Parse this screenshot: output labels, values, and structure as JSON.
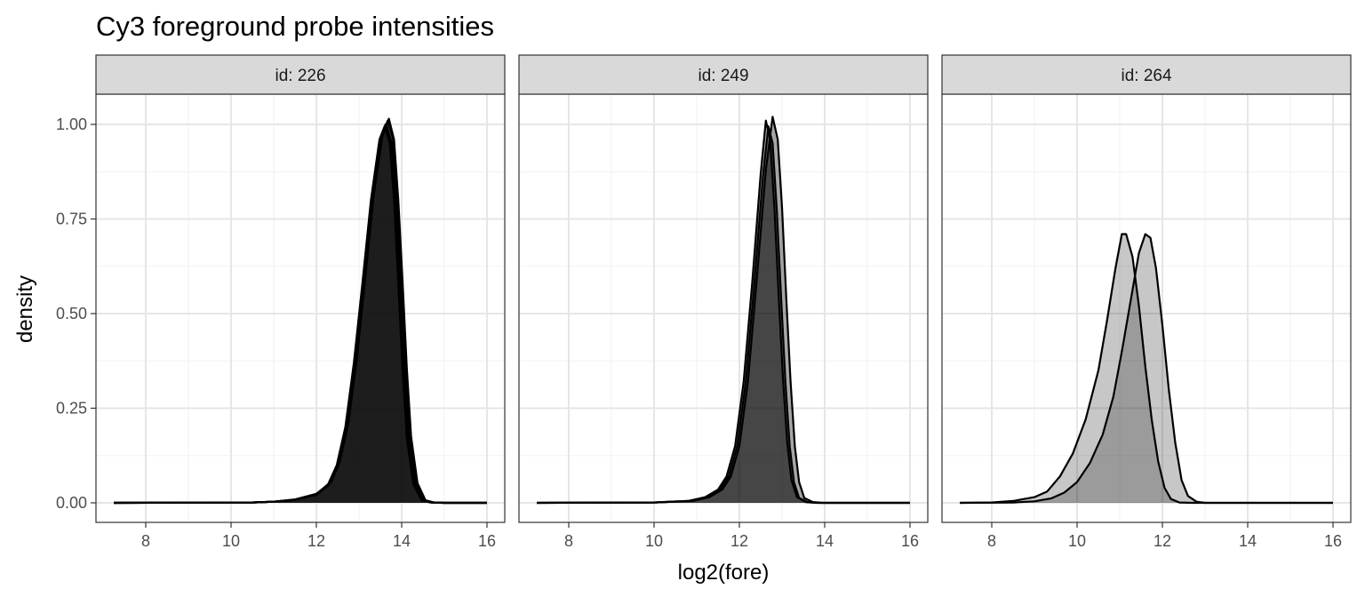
{
  "chart_data": {
    "type": "area",
    "title": "Cy3 foreground probe intensities",
    "xlabel": "log2(fore)",
    "ylabel": "density",
    "xlim": [
      7.2,
      16.0
    ],
    "ylim": [
      0,
      1.05
    ],
    "x_ticks": [
      8,
      10,
      12,
      14,
      16
    ],
    "y_ticks": [
      0,
      0.25,
      0.5,
      0.75,
      1.0
    ],
    "y_tick_labels": [
      "0.00",
      "0.25",
      "0.50",
      "0.75",
      "1.00"
    ],
    "grid": true,
    "legend": "none",
    "panels": [
      {
        "strip": "id: 226",
        "series": [
          {
            "fill": "#000000",
            "fill_opacity": 0.35,
            "points": [
              [
                7.25,
                0
              ],
              [
                10.5,
                0.001
              ],
              [
                11.0,
                0.003
              ],
              [
                11.5,
                0.008
              ],
              [
                12.0,
                0.022
              ],
              [
                12.3,
                0.05
              ],
              [
                12.5,
                0.1
              ],
              [
                12.7,
                0.2
              ],
              [
                12.9,
                0.37
              ],
              [
                13.1,
                0.58
              ],
              [
                13.3,
                0.8
              ],
              [
                13.5,
                0.96
              ],
              [
                13.62,
                1.0
              ],
              [
                13.75,
                0.95
              ],
              [
                13.85,
                0.8
              ],
              [
                13.95,
                0.58
              ],
              [
                14.05,
                0.35
              ],
              [
                14.15,
                0.17
              ],
              [
                14.3,
                0.05
              ],
              [
                14.5,
                0.006
              ],
              [
                14.7,
                0.001
              ],
              [
                15.0,
                0
              ],
              [
                16.0,
                0
              ]
            ]
          },
          {
            "fill": "#000000",
            "fill_opacity": 0.35,
            "points": [
              [
                7.25,
                0
              ],
              [
                10.5,
                0.001
              ],
              [
                11.0,
                0.003
              ],
              [
                11.5,
                0.009
              ],
              [
                12.0,
                0.024
              ],
              [
                12.35,
                0.055
              ],
              [
                12.55,
                0.11
              ],
              [
                12.75,
                0.21
              ],
              [
                12.95,
                0.38
              ],
              [
                13.15,
                0.6
              ],
              [
                13.35,
                0.82
              ],
              [
                13.55,
                0.97
              ],
              [
                13.67,
                1.01
              ],
              [
                13.8,
                0.96
              ],
              [
                13.9,
                0.81
              ],
              [
                14.0,
                0.59
              ],
              [
                14.1,
                0.36
              ],
              [
                14.2,
                0.18
              ],
              [
                14.35,
                0.055
              ],
              [
                14.55,
                0.007
              ],
              [
                14.75,
                0.001
              ],
              [
                15.0,
                0
              ],
              [
                16.0,
                0
              ]
            ]
          },
          {
            "fill": "#000000",
            "fill_opacity": 0.35,
            "points": [
              [
                7.25,
                0
              ],
              [
                10.5,
                0.001
              ],
              [
                11.0,
                0.003
              ],
              [
                11.5,
                0.008
              ],
              [
                12.0,
                0.021
              ],
              [
                12.3,
                0.048
              ],
              [
                12.52,
                0.1
              ],
              [
                12.72,
                0.2
              ],
              [
                12.92,
                0.37
              ],
              [
                13.12,
                0.59
              ],
              [
                13.32,
                0.81
              ],
              [
                13.52,
                0.97
              ],
              [
                13.64,
                1.0
              ],
              [
                13.77,
                0.95
              ],
              [
                13.88,
                0.8
              ],
              [
                13.98,
                0.58
              ],
              [
                14.08,
                0.35
              ],
              [
                14.18,
                0.17
              ],
              [
                14.33,
                0.05
              ],
              [
                14.52,
                0.006
              ],
              [
                14.72,
                0.001
              ],
              [
                15.0,
                0
              ],
              [
                16.0,
                0
              ]
            ]
          },
          {
            "fill": "#000000",
            "fill_opacity": 0.35,
            "points": [
              [
                7.25,
                0
              ],
              [
                10.5,
                0.001
              ],
              [
                11.0,
                0.003
              ],
              [
                11.5,
                0.009
              ],
              [
                12.0,
                0.023
              ],
              [
                12.32,
                0.052
              ],
              [
                12.54,
                0.105
              ],
              [
                12.74,
                0.205
              ],
              [
                12.94,
                0.375
              ],
              [
                13.14,
                0.59
              ],
              [
                13.34,
                0.81
              ],
              [
                13.54,
                0.965
              ],
              [
                13.7,
                1.015
              ],
              [
                13.82,
                0.96
              ],
              [
                13.92,
                0.8
              ],
              [
                14.02,
                0.585
              ],
              [
                14.12,
                0.355
              ],
              [
                14.22,
                0.175
              ],
              [
                14.37,
                0.052
              ],
              [
                14.56,
                0.006
              ],
              [
                14.76,
                0.001
              ],
              [
                15.0,
                0
              ],
              [
                16.0,
                0
              ]
            ]
          },
          {
            "fill": "#000000",
            "fill_opacity": 0.35,
            "points": [
              [
                7.25,
                0
              ],
              [
                10.5,
                0.001
              ],
              [
                11.0,
                0.003
              ],
              [
                11.5,
                0.008
              ],
              [
                12.0,
                0.022
              ],
              [
                12.28,
                0.05
              ],
              [
                12.48,
                0.1
              ],
              [
                12.68,
                0.2
              ],
              [
                12.88,
                0.37
              ],
              [
                13.08,
                0.58
              ],
              [
                13.28,
                0.8
              ],
              [
                13.48,
                0.96
              ],
              [
                13.6,
                0.995
              ],
              [
                13.72,
                0.95
              ],
              [
                13.82,
                0.8
              ],
              [
                13.92,
                0.58
              ],
              [
                14.02,
                0.35
              ],
              [
                14.12,
                0.17
              ],
              [
                14.27,
                0.05
              ],
              [
                14.47,
                0.006
              ],
              [
                14.67,
                0.001
              ],
              [
                15.0,
                0
              ],
              [
                16.0,
                0
              ]
            ]
          }
        ]
      },
      {
        "strip": "id: 249",
        "series": [
          {
            "fill": "#000000",
            "fill_opacity": 0.35,
            "points": [
              [
                7.25,
                0
              ],
              [
                10.0,
                0.001
              ],
              [
                10.8,
                0.005
              ],
              [
                11.2,
                0.015
              ],
              [
                11.5,
                0.035
              ],
              [
                11.7,
                0.07
              ],
              [
                11.9,
                0.15
              ],
              [
                12.1,
                0.32
              ],
              [
                12.3,
                0.58
              ],
              [
                12.5,
                0.87
              ],
              [
                12.62,
                1.01
              ],
              [
                12.72,
                0.96
              ],
              [
                12.82,
                0.78
              ],
              [
                12.92,
                0.55
              ],
              [
                13.02,
                0.33
              ],
              [
                13.12,
                0.16
              ],
              [
                13.22,
                0.06
              ],
              [
                13.35,
                0.015
              ],
              [
                13.55,
                0.002
              ],
              [
                13.8,
                0
              ],
              [
                16.0,
                0
              ]
            ]
          },
          {
            "fill": "#000000",
            "fill_opacity": 0.35,
            "points": [
              [
                7.25,
                0
              ],
              [
                10.0,
                0.001
              ],
              [
                10.8,
                0.005
              ],
              [
                11.2,
                0.014
              ],
              [
                11.55,
                0.035
              ],
              [
                11.75,
                0.07
              ],
              [
                11.95,
                0.15
              ],
              [
                12.15,
                0.32
              ],
              [
                12.35,
                0.58
              ],
              [
                12.55,
                0.86
              ],
              [
                12.68,
                0.995
              ],
              [
                12.78,
                0.95
              ],
              [
                12.88,
                0.77
              ],
              [
                12.98,
                0.54
              ],
              [
                13.08,
                0.32
              ],
              [
                13.18,
                0.15
              ],
              [
                13.28,
                0.055
              ],
              [
                13.4,
                0.013
              ],
              [
                13.6,
                0.002
              ],
              [
                13.85,
                0
              ],
              [
                16.0,
                0
              ]
            ]
          },
          {
            "fill": "#000000",
            "fill_opacity": 0.35,
            "points": [
              [
                7.25,
                0
              ],
              [
                10.0,
                0.001
              ],
              [
                10.9,
                0.005
              ],
              [
                11.3,
                0.015
              ],
              [
                11.6,
                0.035
              ],
              [
                11.8,
                0.07
              ],
              [
                12.0,
                0.15
              ],
              [
                12.2,
                0.32
              ],
              [
                12.4,
                0.58
              ],
              [
                12.62,
                0.88
              ],
              [
                12.78,
                1.02
              ],
              [
                12.9,
                0.96
              ],
              [
                13.0,
                0.78
              ],
              [
                13.1,
                0.54
              ],
              [
                13.2,
                0.32
              ],
              [
                13.3,
                0.15
              ],
              [
                13.4,
                0.055
              ],
              [
                13.52,
                0.013
              ],
              [
                13.72,
                0.002
              ],
              [
                13.95,
                0
              ],
              [
                16.0,
                0
              ]
            ]
          }
        ]
      },
      {
        "strip": "id: 264",
        "series": [
          {
            "fill": "#000000",
            "fill_opacity": 0.22,
            "points": [
              [
                7.25,
                0
              ],
              [
                8.0,
                0.001
              ],
              [
                8.5,
                0.005
              ],
              [
                9.0,
                0.015
              ],
              [
                9.3,
                0.03
              ],
              [
                9.6,
                0.07
              ],
              [
                9.9,
                0.13
              ],
              [
                10.2,
                0.22
              ],
              [
                10.5,
                0.35
              ],
              [
                10.7,
                0.48
              ],
              [
                10.9,
                0.62
              ],
              [
                11.05,
                0.71
              ],
              [
                11.15,
                0.71
              ],
              [
                11.3,
                0.65
              ],
              [
                11.45,
                0.52
              ],
              [
                11.6,
                0.36
              ],
              [
                11.75,
                0.22
              ],
              [
                11.9,
                0.11
              ],
              [
                12.05,
                0.04
              ],
              [
                12.2,
                0.01
              ],
              [
                12.4,
                0.001
              ],
              [
                12.7,
                0
              ],
              [
                16.0,
                0
              ]
            ]
          },
          {
            "fill": "#000000",
            "fill_opacity": 0.22,
            "points": [
              [
                7.25,
                0
              ],
              [
                8.5,
                0.001
              ],
              [
                9.0,
                0.004
              ],
              [
                9.4,
                0.012
              ],
              [
                9.7,
                0.027
              ],
              [
                10.0,
                0.055
              ],
              [
                10.3,
                0.105
              ],
              [
                10.6,
                0.18
              ],
              [
                10.85,
                0.28
              ],
              [
                11.05,
                0.4
              ],
              [
                11.25,
                0.53
              ],
              [
                11.45,
                0.66
              ],
              [
                11.6,
                0.71
              ],
              [
                11.72,
                0.7
              ],
              [
                11.85,
                0.62
              ],
              [
                12.0,
                0.47
              ],
              [
                12.15,
                0.3
              ],
              [
                12.3,
                0.16
              ],
              [
                12.45,
                0.06
              ],
              [
                12.6,
                0.018
              ],
              [
                12.8,
                0.003
              ],
              [
                13.0,
                0
              ],
              [
                16.0,
                0
              ]
            ]
          }
        ]
      }
    ]
  }
}
